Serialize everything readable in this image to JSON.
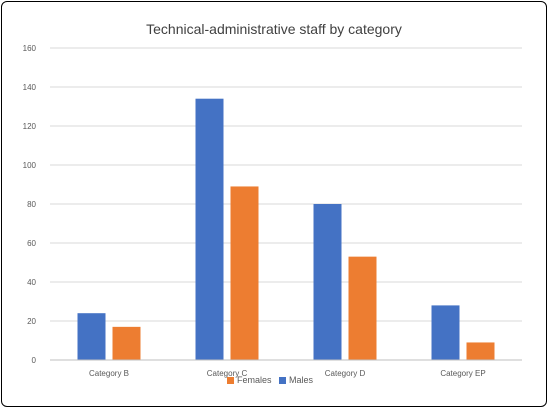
{
  "chart_data": {
    "type": "bar",
    "title": "Technical-administrative staff by category",
    "xlabel": "",
    "ylabel": "",
    "categories": [
      "Category B",
      "Category C",
      "Category D",
      "Category EP"
    ],
    "series": [
      {
        "name": "Males",
        "values": [
          24,
          134,
          80,
          28
        ],
        "color": "#4472c4"
      },
      {
        "name": "Females",
        "values": [
          17,
          89,
          53,
          9
        ],
        "color": "#ed7d31"
      }
    ],
    "ylim": [
      0,
      160
    ],
    "yticks": [
      0,
      20,
      40,
      60,
      80,
      100,
      120,
      140,
      160
    ],
    "grid": true,
    "legend_position": "bottom",
    "legend_order": [
      "Females",
      "Males"
    ]
  }
}
